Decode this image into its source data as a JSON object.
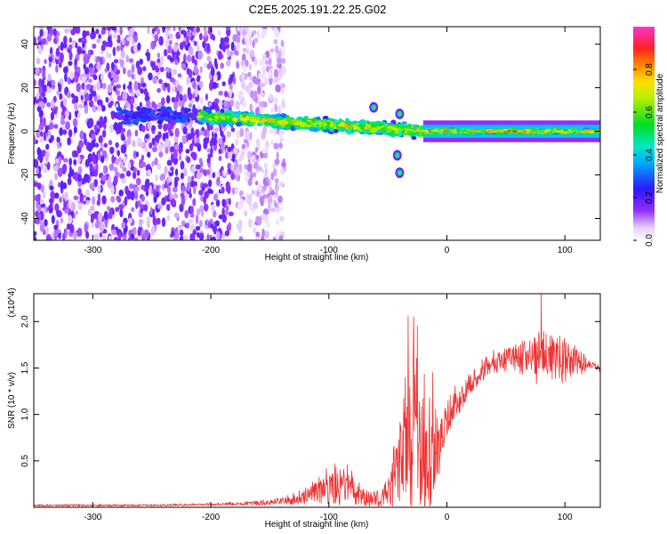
{
  "figure_title": "C2E5.2025.191.22.25.G02",
  "chart_data": [
    {
      "type": "heatmap",
      "title": "",
      "xlabel": "Height of straight line (km)",
      "ylabel": "Frequency (Hz)",
      "xlim": [
        -350,
        130
      ],
      "ylim": [
        -50,
        48
      ],
      "xticks": [
        -300,
        -200,
        -100,
        0,
        100
      ],
      "yticks": [
        -40,
        -20,
        0,
        20,
        40
      ],
      "xtick_labels": [
        "-300",
        "-200",
        "-100",
        "0",
        "100"
      ],
      "ytick_labels": [
        "-40",
        "-20",
        "0",
        "20",
        "40"
      ],
      "colorbar": {
        "label": "Normalized spectral amplitude",
        "range": [
          0,
          1
        ],
        "ticks": [
          0.0,
          0.2,
          0.4,
          0.6,
          0.8
        ],
        "tick_labels": [
          "0.0",
          "0.2",
          "0.4",
          "0.6",
          "0.8"
        ]
      },
      "features": [
        {
          "desc": "diffuse noise",
          "x_range": [
            -350,
            -150
          ],
          "freq_range": [
            -50,
            48
          ],
          "amplitude": [
            0.05,
            0.2
          ]
        },
        {
          "desc": "weak carrier",
          "x_range": [
            -280,
            -210
          ],
          "center_freq": 7,
          "amplitude": 0.25
        },
        {
          "desc": "carrier trace",
          "x_range": [
            -210,
            -20
          ],
          "center_freq_start": 7,
          "center_freq_end": 0,
          "amplitude": [
            0.3,
            0.7
          ]
        },
        {
          "desc": "strong carrier",
          "x_range": [
            -20,
            130
          ],
          "center_freq": 0,
          "amplitude": [
            0.6,
            0.95
          ]
        },
        {
          "desc": "side blips",
          "points": [
            [
              -62,
              11
            ],
            [
              -40,
              8
            ],
            [
              -42,
              -11
            ],
            [
              -40,
              -19
            ]
          ]
        }
      ]
    },
    {
      "type": "line",
      "title": "",
      "xlabel": "Height of straight line (km)",
      "ylabel": "SNR (10 * v/v)",
      "y_multiplier": "(x10^4)",
      "xlim": [
        -350,
        130
      ],
      "ylim": [
        0,
        2.3
      ],
      "xticks": [
        -300,
        -200,
        -100,
        0,
        100
      ],
      "yticks": [
        0.5,
        1.0,
        1.5,
        2.0
      ],
      "xtick_labels": [
        "-300",
        "-200",
        "-100",
        "0",
        "100"
      ],
      "ytick_labels": [
        "0.5",
        "1.0",
        "1.5",
        "2.0"
      ],
      "series": [
        {
          "color": "#ee3333",
          "x": [
            -350,
            -300,
            -250,
            -200,
            -170,
            -150,
            -130,
            -115,
            -105,
            -95,
            -88,
            -80,
            -72,
            -60,
            -50,
            -45,
            -40,
            -35,
            -30,
            -25,
            -20,
            -15,
            -10,
            -5,
            0,
            10,
            20,
            30,
            40,
            50,
            60,
            70,
            80,
            90,
            100,
            110,
            120,
            130
          ],
          "y": [
            0.02,
            0.02,
            0.02,
            0.03,
            0.04,
            0.05,
            0.08,
            0.14,
            0.18,
            0.2,
            0.22,
            0.18,
            0.1,
            0.08,
            0.15,
            0.3,
            0.45,
            0.6,
            0.75,
            0.7,
            0.6,
            0.45,
            0.5,
            0.7,
            0.95,
            1.15,
            1.32,
            1.45,
            1.55,
            1.62,
            1.65,
            1.66,
            1.67,
            1.66,
            1.64,
            1.6,
            1.55,
            1.5
          ],
          "noise_amplitude": [
            0.01,
            0.01,
            0.01,
            0.01,
            0.02,
            0.03,
            0.05,
            0.1,
            0.15,
            0.18,
            0.2,
            0.15,
            0.1,
            0.1,
            0.15,
            0.3,
            0.45,
            0.6,
            0.75,
            0.7,
            0.6,
            0.5,
            0.4,
            0.25,
            0.2,
            0.15,
            0.1,
            0.1,
            0.1,
            0.1,
            0.15,
            0.2,
            0.25,
            0.22,
            0.2,
            0.15,
            0.05,
            0.03
          ],
          "peaks": [
            [
              -33,
              2.06
            ],
            [
              -28,
              2.05
            ],
            [
              -25,
              1.95
            ],
            [
              -12,
              1.45
            ],
            [
              80,
              2.3
            ]
          ]
        }
      ]
    }
  ]
}
